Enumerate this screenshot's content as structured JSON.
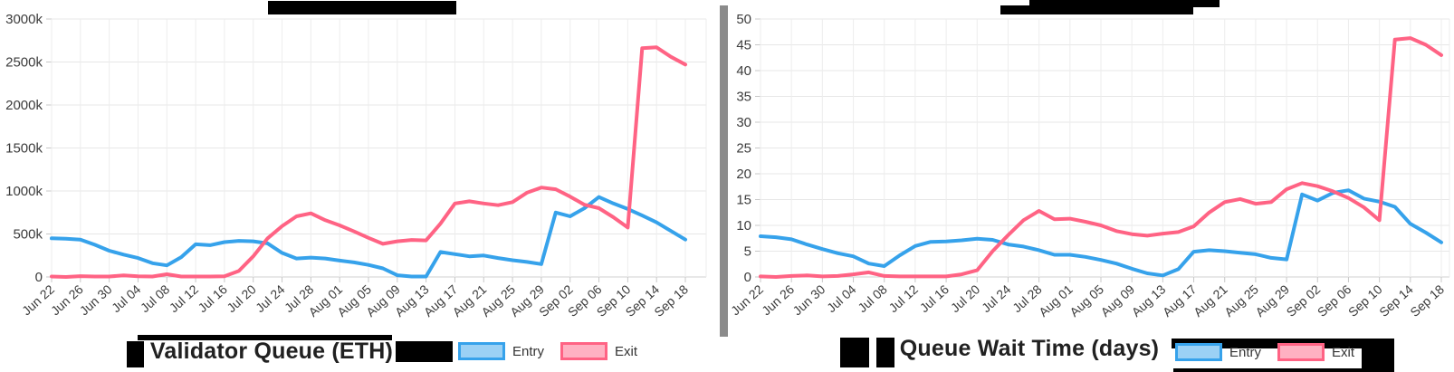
{
  "chart_data": [
    {
      "type": "line",
      "title": "Validator Queue (ETH)",
      "y_unit": "thousand ETH (axis labels use k suffix)",
      "ylim": [
        0,
        3000
      ],
      "y_tick_labels": [
        "0",
        "500k",
        "1000k",
        "1500k",
        "2000k",
        "2500k",
        "3000k"
      ],
      "x_tick_labels": [
        "Jun 22",
        "Jun 26",
        "Jun 30",
        "Jul 04",
        "Jul 08",
        "Jul 12",
        "Jul 16",
        "Jul 20",
        "Jul 24",
        "Jul 28",
        "Aug 01",
        "Aug 05",
        "Aug 09",
        "Aug 13",
        "Aug 17",
        "Aug 21",
        "Aug 25",
        "Aug 29",
        "Sep 02",
        "Sep 06",
        "Sep 10",
        "Sep 14",
        "Sep 18"
      ],
      "x": [
        "Jun 22",
        "Jun 24",
        "Jun 26",
        "Jun 28",
        "Jun 30",
        "Jul 02",
        "Jul 04",
        "Jul 06",
        "Jul 08",
        "Jul 10",
        "Jul 12",
        "Jul 14",
        "Jul 16",
        "Jul 18",
        "Jul 20",
        "Jul 22",
        "Jul 24",
        "Jul 26",
        "Jul 28",
        "Jul 30",
        "Aug 01",
        "Aug 03",
        "Aug 05",
        "Aug 07",
        "Aug 09",
        "Aug 11",
        "Aug 13",
        "Aug 15",
        "Aug 17",
        "Aug 19",
        "Aug 21",
        "Aug 23",
        "Aug 25",
        "Aug 27",
        "Aug 29",
        "Aug 31",
        "Sep 02",
        "Sep 04",
        "Sep 06",
        "Sep 08",
        "Sep 10",
        "Sep 12",
        "Sep 14",
        "Sep 16",
        "Sep 18"
      ],
      "series": [
        {
          "name": "Entry",
          "color": "#36a2eb",
          "values": [
            450,
            445,
            435,
            375,
            305,
            260,
            220,
            160,
            135,
            230,
            380,
            370,
            405,
            420,
            415,
            390,
            280,
            215,
            225,
            215,
            190,
            170,
            140,
            100,
            20,
            5,
            5,
            290,
            265,
            240,
            250,
            220,
            195,
            175,
            150,
            750,
            705,
            800,
            930,
            855,
            790,
            715,
            635,
            535,
            435
          ]
        },
        {
          "name": "Exit",
          "color": "#ff6384",
          "values": [
            5,
            0,
            10,
            5,
            5,
            18,
            8,
            5,
            32,
            5,
            5,
            5,
            8,
            70,
            240,
            450,
            590,
            705,
            740,
            660,
            600,
            530,
            455,
            385,
            415,
            430,
            425,
            620,
            855,
            880,
            855,
            835,
            870,
            980,
            1040,
            1020,
            935,
            840,
            800,
            695,
            575,
            2660,
            2670,
            2560,
            2470
          ]
        }
      ],
      "legend_position": "bottom",
      "grid": true
    },
    {
      "type": "line",
      "title": "Queue Wait Time (days)",
      "y_unit": "days",
      "ylim": [
        0,
        50
      ],
      "y_tick_labels": [
        "0",
        "5",
        "10",
        "15",
        "20",
        "25",
        "30",
        "35",
        "40",
        "45",
        "50"
      ],
      "x_tick_labels": [
        "Jun 22",
        "Jun 26",
        "Jun 30",
        "Jul 04",
        "Jul 08",
        "Jul 12",
        "Jul 16",
        "Jul 20",
        "Jul 24",
        "Jul 28",
        "Aug 01",
        "Aug 05",
        "Aug 09",
        "Aug 13",
        "Aug 17",
        "Aug 21",
        "Aug 25",
        "Aug 29",
        "Sep 02",
        "Sep 06",
        "Sep 10",
        "Sep 14",
        "Sep 18"
      ],
      "x": [
        "Jun 22",
        "Jun 24",
        "Jun 26",
        "Jun 28",
        "Jun 30",
        "Jul 02",
        "Jul 04",
        "Jul 06",
        "Jul 08",
        "Jul 10",
        "Jul 12",
        "Jul 14",
        "Jul 16",
        "Jul 18",
        "Jul 20",
        "Jul 22",
        "Jul 24",
        "Jul 26",
        "Jul 28",
        "Jul 30",
        "Aug 01",
        "Aug 03",
        "Aug 05",
        "Aug 07",
        "Aug 09",
        "Aug 11",
        "Aug 13",
        "Aug 15",
        "Aug 17",
        "Aug 19",
        "Aug 21",
        "Aug 23",
        "Aug 25",
        "Aug 27",
        "Aug 29",
        "Aug 31",
        "Sep 02",
        "Sep 04",
        "Sep 06",
        "Sep 08",
        "Sep 10",
        "Sep 12",
        "Sep 14",
        "Sep 16",
        "Sep 18"
      ],
      "series": [
        {
          "name": "Entry",
          "color": "#36a2eb",
          "values": [
            7.9,
            7.7,
            7.3,
            6.3,
            5.4,
            4.6,
            4.0,
            2.6,
            2.1,
            4.2,
            6.0,
            6.8,
            6.9,
            7.1,
            7.4,
            7.2,
            6.3,
            5.9,
            5.2,
            4.3,
            4.3,
            3.9,
            3.3,
            2.6,
            1.6,
            0.7,
            0.3,
            1.5,
            4.9,
            5.2,
            5.0,
            4.7,
            4.4,
            3.7,
            3.4,
            16.0,
            14.8,
            16.3,
            16.8,
            15.2,
            14.6,
            13.6,
            10.3,
            8.6,
            6.7
          ]
        },
        {
          "name": "Exit",
          "color": "#ff6384",
          "values": [
            0.1,
            0,
            0.2,
            0.3,
            0.1,
            0.2,
            0.5,
            0.9,
            0.2,
            0.1,
            0.1,
            0.1,
            0.1,
            0.5,
            1.3,
            5.0,
            8.1,
            11.0,
            12.8,
            11.2,
            11.3,
            10.7,
            10.0,
            8.9,
            8.3,
            8.0,
            8.4,
            8.7,
            9.8,
            12.5,
            14.5,
            15.1,
            14.2,
            14.5,
            17.0,
            18.2,
            17.6,
            16.6,
            15.3,
            13.5,
            11.0,
            46.0,
            46.3,
            45.0,
            43.0
          ]
        }
      ],
      "legend_position": "bottom",
      "grid": true
    }
  ],
  "colors": {
    "entry_line": "#36a2eb",
    "exit_line": "#ff6384",
    "gridline": "#e7e7e7",
    "axis_text": "#3b3b3b",
    "divider": "#8b8b8b"
  }
}
